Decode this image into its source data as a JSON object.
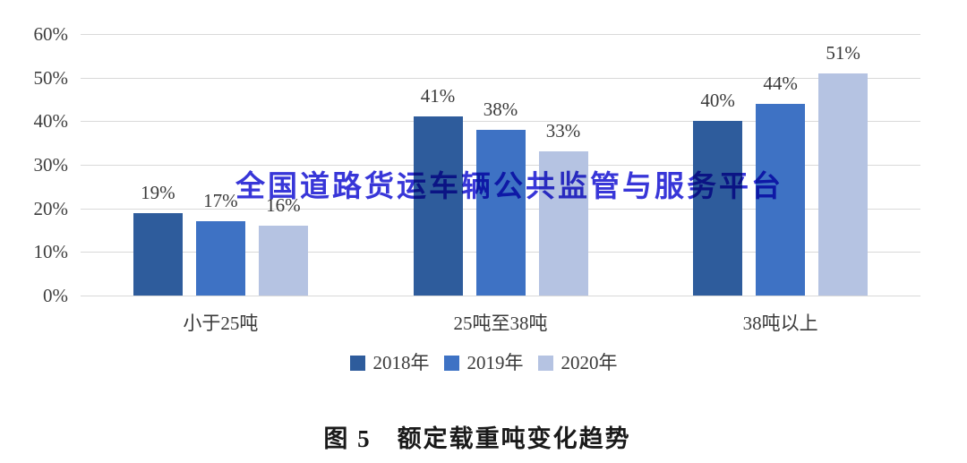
{
  "watermark": {
    "text": "全国道路货运车辆公共监管与服务平台",
    "color": "#3836d8"
  },
  "caption": "图 5　额定载重吨变化趋势",
  "chart_data": {
    "type": "bar",
    "title": "图 5 额定载重吨变化趋势",
    "categories": [
      "小于25吨",
      "25吨至38吨",
      "38吨以上"
    ],
    "series": [
      {
        "name": "2018年",
        "color": "#2e5c9c",
        "values": [
          19,
          41,
          40
        ],
        "labels": [
          "19%",
          "41%",
          "40%"
        ]
      },
      {
        "name": "2019年",
        "color": "#3e72c4",
        "values": [
          17,
          38,
          44
        ],
        "labels": [
          "17%",
          "38%",
          "44%"
        ]
      },
      {
        "name": "2020年",
        "color": "#b5c3e2",
        "values": [
          16,
          33,
          51
        ],
        "labels": [
          "16%",
          "33%",
          "51%"
        ]
      }
    ],
    "xlabel": "",
    "ylabel": "",
    "ylim": [
      0,
      60
    ],
    "yticks": [
      {
        "value": 0,
        "label": "0%"
      },
      {
        "value": 10,
        "label": "10%"
      },
      {
        "value": 20,
        "label": "20%"
      },
      {
        "value": 30,
        "label": "30%"
      },
      {
        "value": 40,
        "label": "40%"
      },
      {
        "value": 50,
        "label": "50%"
      },
      {
        "value": 60,
        "label": "60%"
      }
    ],
    "grid": true,
    "legend_position": "bottom"
  }
}
